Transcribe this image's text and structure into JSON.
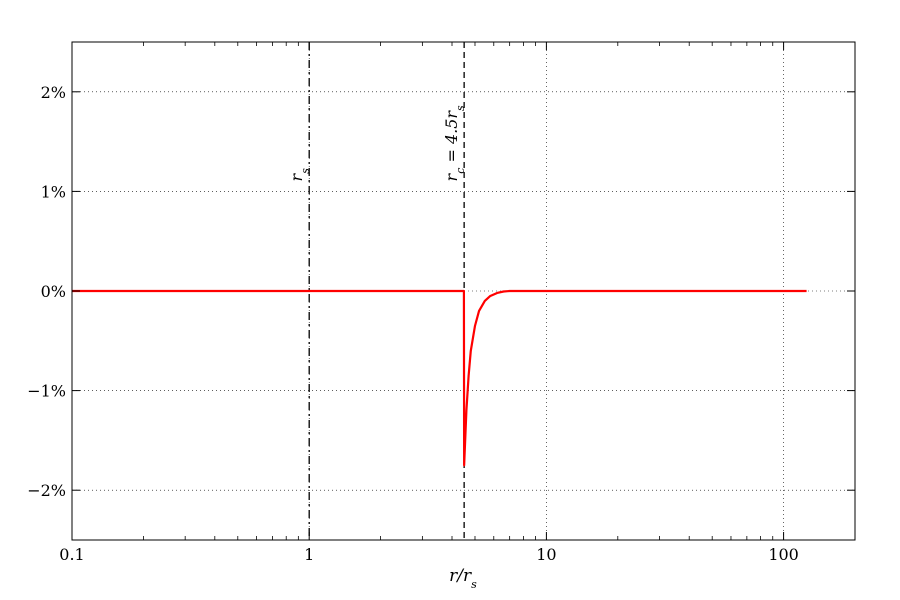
{
  "chart_data": {
    "type": "line",
    "xscale": "log",
    "xlim": [
      0.1,
      200
    ],
    "ylim": [
      -2.5,
      2.5
    ],
    "xlabel": "r/r_s",
    "x_ticks": [
      {
        "value": 0.1,
        "label": "0.1"
      },
      {
        "value": 1,
        "label": "1"
      },
      {
        "value": 10,
        "label": "10"
      },
      {
        "value": 100,
        "label": "100"
      }
    ],
    "y_ticks": [
      {
        "value": 2,
        "label": "2%"
      },
      {
        "value": 1,
        "label": "1%"
      },
      {
        "value": 0,
        "label": "0%"
      },
      {
        "value": -1,
        "label": "−1%"
      },
      {
        "value": -2,
        "label": "−2%"
      }
    ],
    "grid": true,
    "vlines": [
      {
        "x": 1,
        "style": "dashdot",
        "label": "r_s"
      },
      {
        "x": 4.5,
        "style": "dashed",
        "label": "r_c = 4.5r_s"
      }
    ],
    "series": [
      {
        "color": "#ff0000",
        "x": [
          0.1,
          0.5,
          1,
          2,
          3,
          4,
          4.49,
          4.5,
          4.6,
          4.7,
          4.8,
          5.0,
          5.2,
          5.5,
          5.8,
          6.2,
          6.6,
          7.0,
          8.0,
          10,
          20,
          50,
          125
        ],
        "y": [
          0,
          0,
          0,
          0,
          0,
          0,
          0,
          -1.75,
          -1.2,
          -0.85,
          -0.6,
          -0.35,
          -0.2,
          -0.1,
          -0.05,
          -0.02,
          -0.005,
          0,
          0,
          0,
          0,
          0,
          0
        ]
      }
    ]
  }
}
